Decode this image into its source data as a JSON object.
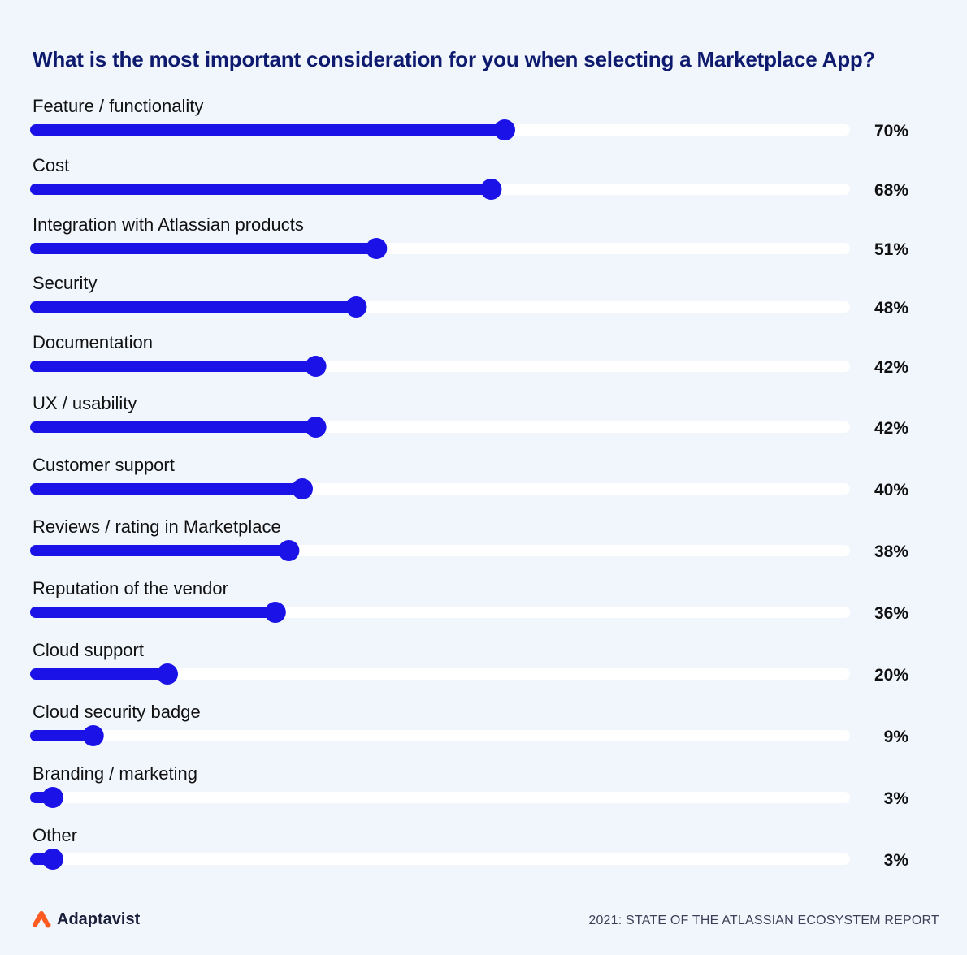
{
  "title": "What is the most important consideration for you when selecting a Marketplace App?",
  "chart_data": {
    "type": "bar",
    "orientation": "horizontal",
    "title": "What is the most important consideration for you when selecting a Marketplace App?",
    "xlim": [
      0,
      100
    ],
    "value_suffix": "%",
    "categories": [
      "Feature / functionality",
      "Cost",
      "Integration with Atlassian products",
      "Security",
      "Documentation",
      "UX / usability",
      "Customer support",
      "Reviews / rating in Marketplace",
      "Reputation of the vendor",
      "Cloud support",
      "Cloud security badge",
      "Branding / marketing",
      "Other"
    ],
    "values": [
      70,
      68,
      51,
      48,
      42,
      42,
      40,
      38,
      36,
      20,
      9,
      3,
      3
    ],
    "value_labels": [
      "70%",
      "68%",
      "51%",
      "48%",
      "42%",
      "42%",
      "40%",
      "38%",
      "36%",
      "20%",
      "9%",
      "3%",
      "3%"
    ],
    "colors": {
      "bar": "#1a12e6",
      "track": "#ffffff",
      "label": "#111111",
      "title": "#0d1a6e"
    }
  },
  "footer": {
    "brand": "Adaptavist",
    "report": "2021: STATE OF THE ATLASSIAN ECOSYSTEM REPORT",
    "logo_color": "#ff5a1f"
  }
}
